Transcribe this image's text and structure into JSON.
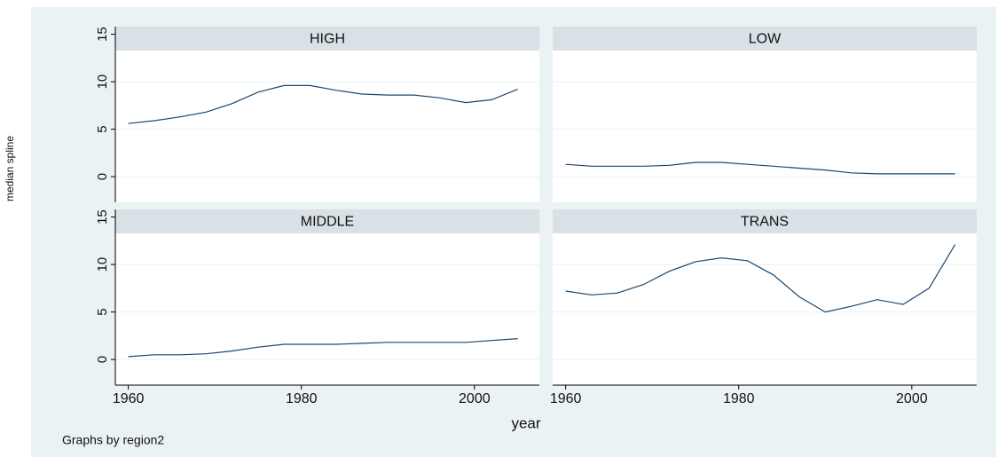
{
  "chart_data": {
    "type": "line",
    "ylabel": "median spline",
    "xlabel": "year",
    "note": "Graphs by region2",
    "x": [
      1960,
      1963,
      1966,
      1969,
      1972,
      1975,
      1978,
      1981,
      1984,
      1987,
      1990,
      1993,
      1996,
      1999,
      2002,
      2005
    ],
    "panels": [
      {
        "title": "HIGH",
        "values": [
          5.6,
          5.9,
          6.3,
          6.8,
          7.7,
          8.9,
          9.6,
          9.6,
          9.1,
          8.7,
          8.6,
          8.6,
          8.3,
          7.8,
          8.1,
          9.2
        ]
      },
      {
        "title": "LOW",
        "values": [
          1.3,
          1.1,
          1.1,
          1.1,
          1.2,
          1.5,
          1.5,
          1.3,
          1.1,
          0.9,
          0.7,
          0.4,
          0.3,
          0.3,
          0.3,
          0.3
        ]
      },
      {
        "title": "MIDDLE",
        "values": [
          0.3,
          0.5,
          0.5,
          0.6,
          0.9,
          1.3,
          1.6,
          1.6,
          1.6,
          1.7,
          1.8,
          1.8,
          1.8,
          1.8,
          2.0,
          2.2
        ]
      },
      {
        "title": "TRANS",
        "values": [
          7.2,
          6.8,
          7.0,
          7.9,
          9.3,
          10.3,
          10.7,
          10.4,
          8.9,
          6.6,
          5.0,
          5.6,
          6.3,
          5.8,
          7.5,
          12.1
        ]
      }
    ],
    "color": "#1a476f",
    "xlim": [
      1958.5,
      2007.5
    ],
    "xticks": [
      1960,
      1980,
      2000
    ],
    "ylim": [
      -2.7,
      15.8
    ],
    "yticks": [
      0,
      5,
      10,
      15
    ],
    "grid": true
  }
}
